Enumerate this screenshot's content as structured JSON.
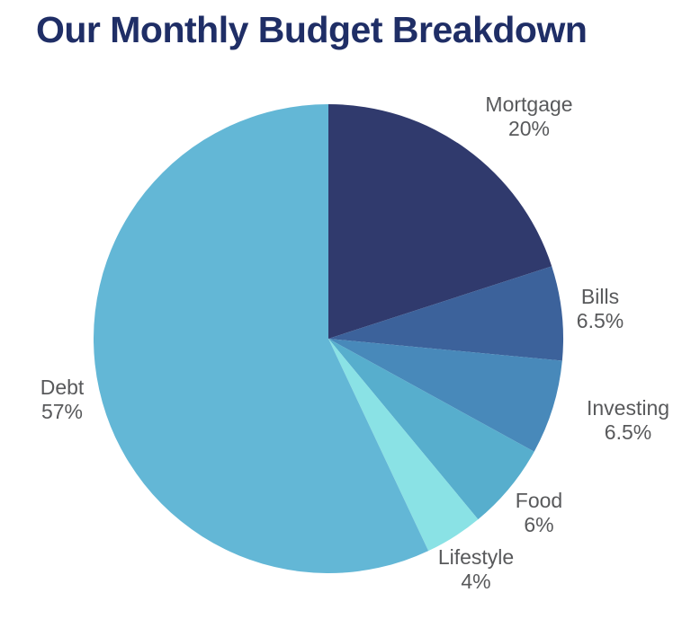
{
  "title": "Our Monthly Budget Breakdown",
  "colors": {
    "title": "#1f2e66",
    "label_text": "#58595b",
    "background": "#ffffff"
  },
  "chart_data": {
    "type": "pie",
    "title": "Our Monthly Budget Breakdown",
    "start_angle_deg": 0,
    "direction": "clockwise",
    "legend_position": "outside-labels",
    "segments": [
      {
        "label": "Mortgage",
        "value": 20,
        "pct_label": "20%",
        "color": "#303a6d"
      },
      {
        "label": "Bills",
        "value": 6.5,
        "pct_label": "6.5%",
        "color": "#3c629b"
      },
      {
        "label": "Investing",
        "value": 6.5,
        "pct_label": "6.5%",
        "color": "#4889ba"
      },
      {
        "label": "Food",
        "value": 6,
        "pct_label": "6%",
        "color": "#57aecd"
      },
      {
        "label": "Lifestyle",
        "value": 4,
        "pct_label": "4%",
        "color": "#8ae2e5"
      },
      {
        "label": "Debt",
        "value": 57,
        "pct_label": "57%",
        "color": "#63b7d6"
      }
    ]
  }
}
